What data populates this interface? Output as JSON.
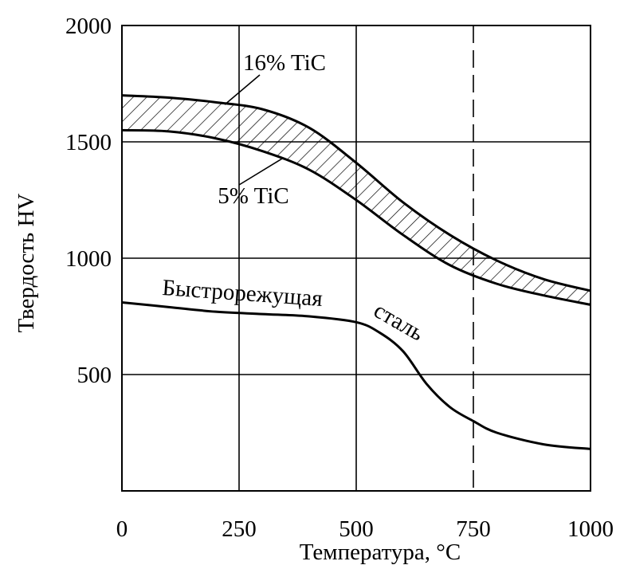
{
  "chart_data": {
    "type": "line",
    "title": "",
    "xlabel": "Температура, °С",
    "ylabel": "Твердость HV",
    "xlim": [
      0,
      1000
    ],
    "ylim": [
      0,
      2000
    ],
    "xticks": [
      0,
      250,
      500,
      750,
      1000
    ],
    "yticks": [
      500,
      1000,
      1500,
      2000
    ],
    "x_tick_labels": [
      "0",
      "250",
      "500",
      "750",
      "1000"
    ],
    "y_tick_labels": [
      "500",
      "1000",
      "1500",
      "2000"
    ],
    "grid": true,
    "dashed_reference_x": 750,
    "band": {
      "upper_series": "16% TiC",
      "lower_series": "5% TiC",
      "fill": "hatched"
    },
    "series": [
      {
        "name": "16% TiC",
        "x": [
          0,
          100,
          200,
          300,
          400,
          500,
          600,
          700,
          800,
          900,
          1000
        ],
        "y": [
          1700,
          1690,
          1670,
          1640,
          1560,
          1410,
          1240,
          1100,
          990,
          910,
          860
        ]
      },
      {
        "name": "5% TiC",
        "x": [
          0,
          100,
          200,
          300,
          400,
          500,
          600,
          700,
          800,
          900,
          1000
        ],
        "y": [
          1550,
          1545,
          1515,
          1460,
          1380,
          1250,
          1100,
          970,
          890,
          840,
          800
        ]
      },
      {
        "name": "Быстрорежущая сталь",
        "x": [
          0,
          100,
          200,
          300,
          400,
          500,
          550,
          600,
          650,
          700,
          750,
          800,
          900,
          1000
        ],
        "y": [
          810,
          790,
          770,
          760,
          750,
          725,
          680,
          600,
          460,
          360,
          300,
          250,
          200,
          180
        ]
      }
    ],
    "annotations": [
      {
        "text": "16% TiC",
        "series": "16% TiC"
      },
      {
        "text": "5% TiC",
        "series": "5% TiC"
      },
      {
        "text": "Быстрорежущая",
        "series": "Быстрорежущая сталь"
      },
      {
        "text": "сталь",
        "series": "Быстрорежущая сталь"
      }
    ],
    "colors": {
      "line": "#000000",
      "grid": "#000000",
      "background": "#ffffff"
    }
  }
}
